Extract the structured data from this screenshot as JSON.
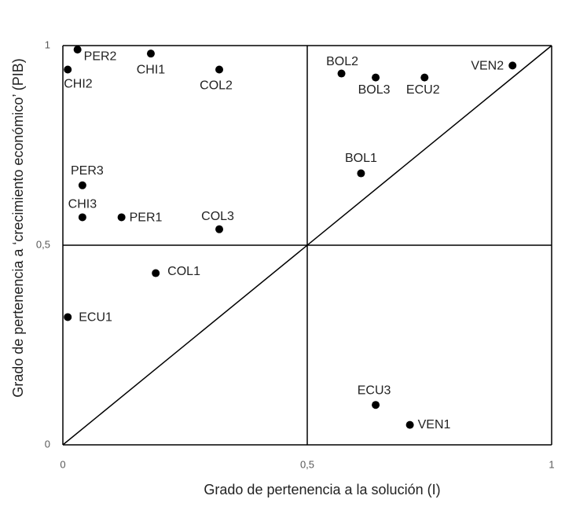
{
  "chart_data": {
    "type": "scatter",
    "x_label": "Grado de pertenencia a la solución (I)",
    "y_label": "Grado de pertenencia a ‘crecimiento económico’ (PIB)",
    "labels": [
      "PER2",
      "CHI1",
      "CHI2",
      "COL2",
      "PER3",
      "CHI3",
      "PER1",
      "COL3",
      "COL1",
      "ECU1",
      "BOL2",
      "BOL3",
      "ECU2",
      "VEN2",
      "BOL1",
      "ECU3",
      "VEN1"
    ],
    "x": [
      0.03,
      0.18,
      0.01,
      0.32,
      0.04,
      0.04,
      0.12,
      0.32,
      0.19,
      0.01,
      0.57,
      0.64,
      0.74,
      0.92,
      0.61,
      0.64,
      0.71
    ],
    "values": [
      0.99,
      0.98,
      0.94,
      0.94,
      0.65,
      0.57,
      0.57,
      0.54,
      0.43,
      0.32,
      0.93,
      0.92,
      0.92,
      0.95,
      0.68,
      0.1,
      0.05
    ],
    "color": "#000000",
    "xlim": [
      0,
      1
    ],
    "ylim": [
      0,
      1
    ],
    "xticks": [
      0,
      {
        "value": 0.5,
        "label": "0,5"
      },
      1
    ],
    "yticks": [
      0,
      {
        "value": 0.5,
        "label": "0,5"
      },
      1
    ],
    "grid": true
  }
}
